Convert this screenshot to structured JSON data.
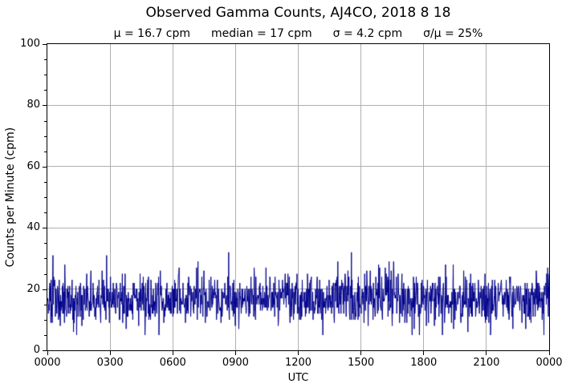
{
  "chart_data": {
    "type": "line",
    "title": "Observed Gamma Counts, AJ4CO, 2018 8 18",
    "stats": {
      "mu": "μ = 16.7 cpm",
      "median": "median = 17 cpm",
      "sigma": "σ = 4.2 cpm",
      "ratio": "σ/μ = 25%"
    },
    "xlabel": "UTC",
    "ylabel": "Counts per Minute (cpm)",
    "xlim_hours": [
      0,
      24
    ],
    "ylim": [
      0,
      100
    ],
    "yticks": [
      0,
      20,
      40,
      60,
      80,
      100
    ],
    "y_minor_step": 5,
    "xtick_hours": [
      0,
      3,
      6,
      9,
      12,
      15,
      18,
      21,
      24
    ],
    "xticklabels": [
      "0000",
      "0300",
      "0600",
      "0900",
      "1200",
      "1500",
      "1800",
      "2100",
      "0000"
    ],
    "grid": true,
    "legend": false,
    "line_color": "#00008B",
    "grid_color": "#b0b0b0",
    "axis_color": "#000000",
    "background_color": "#ffffff",
    "series": {
      "name": "observed gamma counts",
      "points": 1440,
      "cadence_minutes": 1,
      "mean_cpm": 16.7,
      "median_cpm": 17,
      "sigma_cpm": 4.2,
      "min_cpm": 5,
      "max_cpm": 32,
      "distribution": "poisson-like stationary noise over 24 h",
      "seed": 20180818,
      "notable_points": [
        {
          "minute": 16,
          "utc": "0016",
          "value": 31
        },
        {
          "minute": 320,
          "utc": "0520",
          "value": 5
        },
        {
          "minute": 790,
          "utc": "1310",
          "value": 5
        },
        {
          "minute": 872,
          "utc": "1432",
          "value": 32
        },
        {
          "minute": 1435,
          "utc": "2355",
          "value": 27
        }
      ]
    }
  }
}
